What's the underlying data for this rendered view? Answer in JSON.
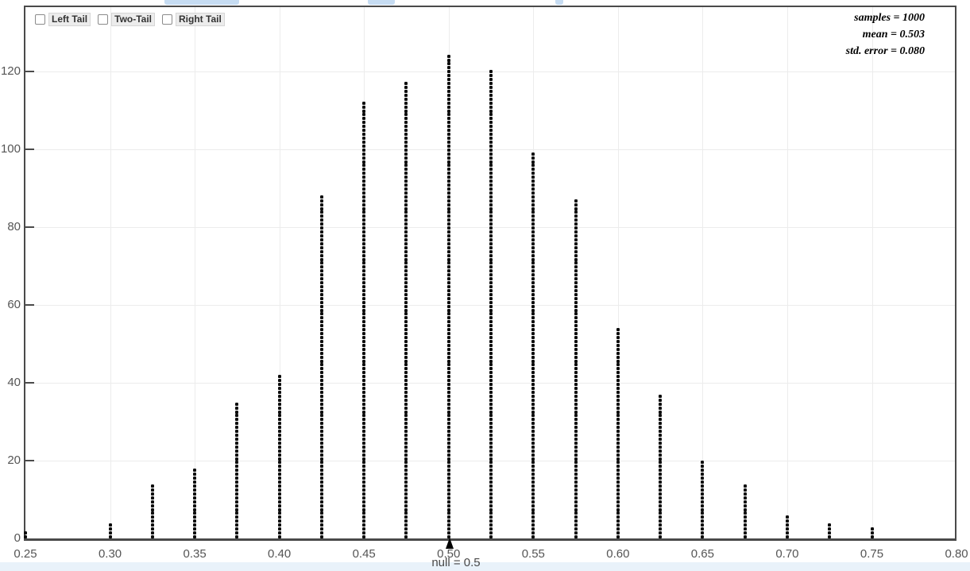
{
  "controls": {
    "tail_checkboxes": [
      {
        "label": "Left Tail",
        "checked": false
      },
      {
        "label": "Two-Tail",
        "checked": false
      },
      {
        "label": "Right Tail",
        "checked": false
      }
    ]
  },
  "stats_panel": {
    "lines": [
      "samples = 1000",
      "mean = 0.503",
      "std. error = 0.080"
    ]
  },
  "chart_data": {
    "type": "bar",
    "variant": "stacked-dot-histogram",
    "title": "",
    "xlabel": "",
    "ylabel": "",
    "x": [
      0.25,
      0.3,
      0.325,
      0.35,
      0.375,
      0.4,
      0.425,
      0.45,
      0.475,
      0.5,
      0.525,
      0.55,
      0.575,
      0.6,
      0.625,
      0.65,
      0.675,
      0.7,
      0.725,
      0.75
    ],
    "values": [
      2,
      4,
      14,
      18,
      35,
      42,
      88,
      112,
      117,
      124,
      120,
      99,
      87,
      54,
      37,
      20,
      14,
      6,
      4,
      3
    ],
    "total_samples": 1000,
    "x_ticks": [
      0.25,
      0.3,
      0.35,
      0.4,
      0.45,
      0.5,
      0.55,
      0.6,
      0.65,
      0.7,
      0.75,
      0.8
    ],
    "x_tick_labels": [
      "0.25",
      "0.30",
      "0.35",
      "0.40",
      "0.45",
      "0.50",
      "0.55",
      "0.60",
      "0.65",
      "0.70",
      "0.75",
      "0.80"
    ],
    "y_ticks": [
      0,
      20,
      40,
      60,
      80,
      100,
      120
    ],
    "y_tick_labels": [
      "0",
      "20",
      "40",
      "60",
      "80",
      "100",
      "120"
    ],
    "xlim": [
      0.25,
      0.8
    ],
    "ylim": [
      0,
      136
    ],
    "grid": "on",
    "legend_position": "none",
    "null_marker": {
      "x": 0.5,
      "label": "null = 0.5"
    }
  },
  "colors": {
    "frame": "#4a4a4a",
    "grid": "#ececec",
    "dots": "#0c0c0c",
    "axis_text": "#555555",
    "stats_text": "#000000",
    "footer_strip": "#e9f2fa",
    "clipped_buttons": "#c6dcf2",
    "checkbox_label_bg": "#ececec"
  }
}
